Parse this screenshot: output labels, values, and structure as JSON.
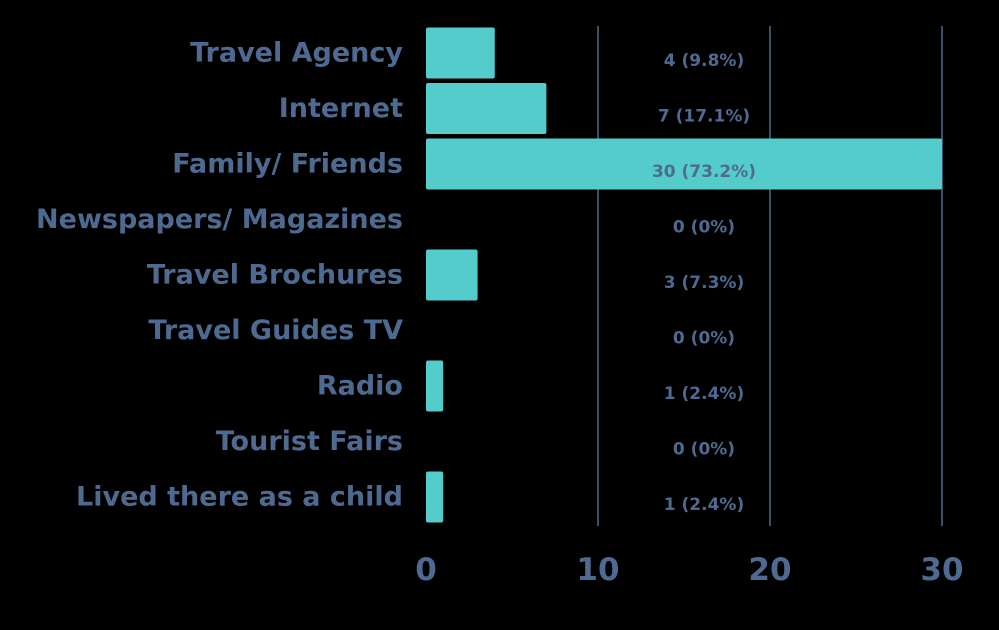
{
  "chart_data": {
    "type": "bar",
    "orientation": "horizontal",
    "categories": [
      "Travel Agency",
      "Internet",
      "Family/ Friends",
      "Newspapers/ Magazines",
      "Travel Brochures",
      "Travel Guides TV",
      "Radio",
      "Tourist Fairs",
      "Lived there as a child"
    ],
    "values": [
      4,
      7,
      30,
      0,
      3,
      0,
      1,
      0,
      1
    ],
    "data_labels": [
      "4 (9.8%)",
      "7 (17.1%)",
      "30 (73.2%)",
      "0 (0%)",
      "3 (7.3%)",
      "0 (0%)",
      "1 (2.4%)",
      "0 (0%)",
      "1 (2.4%)"
    ],
    "xlim": [
      0,
      30
    ],
    "xticks": [
      0,
      10,
      20,
      30
    ],
    "tick_labels": [
      "0",
      "10",
      "20",
      "30"
    ],
    "grid": "vertical",
    "title": "",
    "xlabel": "",
    "ylabel": "",
    "colors": {
      "bar": "#55cccc",
      "text": "#4f6a91",
      "grid": "#4f6a91",
      "background": "#000000"
    }
  }
}
